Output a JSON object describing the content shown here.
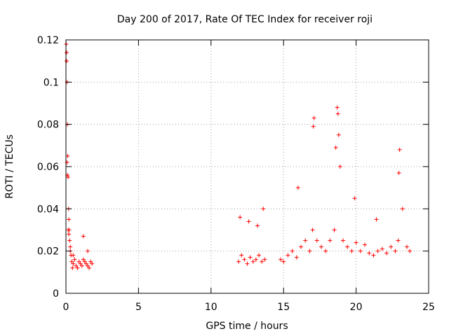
{
  "chart_data": {
    "type": "scatter",
    "title": "Day 200 of 2017, Rate Of TEC Index for receiver roji",
    "xlabel": "GPS time / hours",
    "ylabel": "ROTI / TECUs",
    "xlim": [
      0,
      25
    ],
    "ylim": [
      0,
      0.12
    ],
    "x_ticks": [
      0,
      5,
      10,
      15,
      20,
      25
    ],
    "y_ticks": [
      0,
      0.02,
      0.04,
      0.06,
      0.08,
      0.1,
      0.12
    ],
    "x_tick_labels": [
      "0",
      "5",
      "10",
      "15",
      "20",
      "25"
    ],
    "y_tick_labels": [
      "0",
      "0.02",
      "0.04",
      "0.06",
      "0.08",
      "0.1",
      "0.12"
    ],
    "grid": true,
    "marker": "+",
    "marker_color": "#ff0000",
    "series": [
      {
        "x": [
          0.02,
          0.05,
          0.08,
          0.1,
          0.12,
          0.15,
          0.18,
          0.2,
          0.22,
          0.25,
          0.3,
          0.35,
          0.4,
          0.45,
          0.5,
          0.6,
          0.7,
          0.8,
          0.9,
          1.0,
          1.1,
          1.2,
          1.3,
          1.4,
          1.5,
          1.6,
          1.7,
          1.8,
          0.05,
          0.08,
          0.1,
          0.15,
          0.2,
          0.3,
          0.5,
          1.2,
          1.5,
          11.9,
          12.1,
          12.3,
          12.5,
          12.7,
          12.9,
          13.1,
          13.3,
          13.5,
          13.7,
          12.0,
          12.6,
          13.2,
          13.6,
          14.8,
          15.0,
          15.3,
          15.6,
          15.9,
          16.2,
          16.5,
          16.8,
          17.0,
          17.1,
          17.3,
          17.6,
          17.9,
          18.2,
          18.5,
          18.7,
          18.75,
          18.8,
          18.9,
          19.1,
          19.4,
          19.7,
          20.0,
          20.3,
          20.6,
          20.9,
          21.2,
          21.5,
          21.8,
          22.1,
          22.4,
          22.7,
          22.9,
          23.0,
          23.2,
          23.5,
          23.7,
          16.0,
          17.05,
          18.6,
          19.9,
          21.4,
          22.95
        ],
        "y": [
          0.118,
          0.114,
          0.1,
          0.08,
          0.065,
          0.055,
          0.04,
          0.035,
          0.03,
          0.025,
          0.02,
          0.018,
          0.015,
          0.012,
          0.014,
          0.016,
          0.013,
          0.012,
          0.015,
          0.014,
          0.013,
          0.016,
          0.015,
          0.014,
          0.013,
          0.012,
          0.015,
          0.014,
          0.11,
          0.062,
          0.056,
          0.03,
          0.028,
          0.022,
          0.018,
          0.027,
          0.02,
          0.015,
          0.018,
          0.016,
          0.014,
          0.017,
          0.015,
          0.016,
          0.018,
          0.015,
          0.016,
          0.036,
          0.034,
          0.032,
          0.04,
          0.016,
          0.015,
          0.018,
          0.02,
          0.017,
          0.022,
          0.025,
          0.02,
          0.03,
          0.083,
          0.025,
          0.022,
          0.02,
          0.025,
          0.03,
          0.088,
          0.085,
          0.075,
          0.06,
          0.025,
          0.022,
          0.02,
          0.024,
          0.02,
          0.023,
          0.019,
          0.018,
          0.02,
          0.021,
          0.019,
          0.022,
          0.02,
          0.025,
          0.068,
          0.04,
          0.022,
          0.02,
          0.05,
          0.079,
          0.069,
          0.045,
          0.035,
          0.057
        ]
      }
    ]
  }
}
